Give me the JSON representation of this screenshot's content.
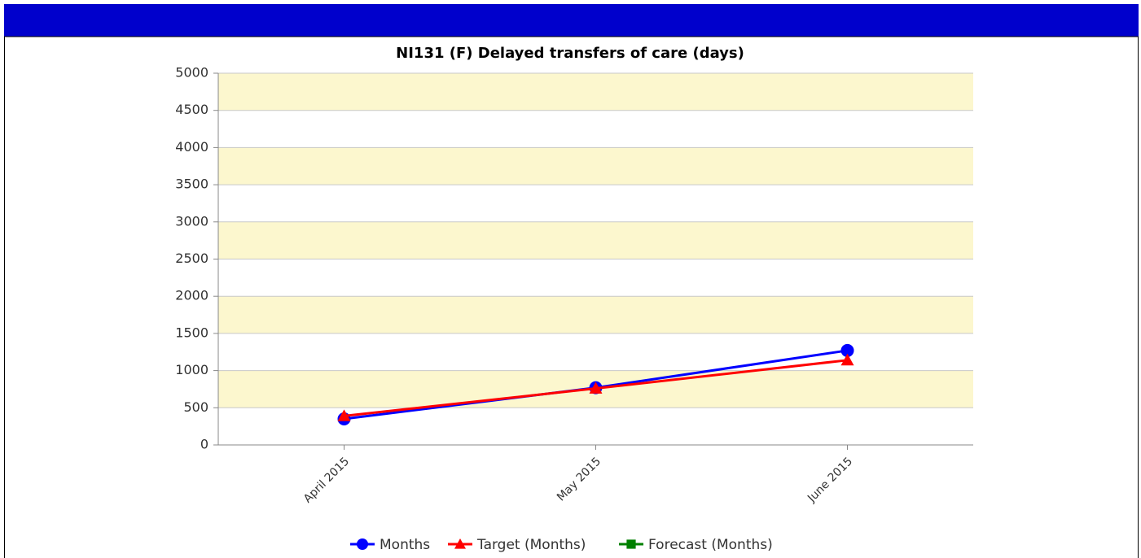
{
  "chart_data": {
    "type": "line",
    "title": "NI131 (F) Delayed transfers of care (days)",
    "categories": [
      "April 2015",
      "May 2015",
      "June 2015"
    ],
    "series": [
      {
        "name": "Months",
        "color": "#0000ff",
        "marker": "circle",
        "values": [
          350,
          770,
          1270
        ]
      },
      {
        "name": "Target (Months)",
        "color": "#ff0000",
        "marker": "triangle",
        "values": [
          390,
          760,
          1140
        ]
      },
      {
        "name": "Forecast (Months)",
        "color": "#008000",
        "marker": "square",
        "values": [
          null,
          null,
          null
        ]
      }
    ],
    "ylim": [
      0,
      5000
    ],
    "yticks": [
      0,
      500,
      1000,
      1500,
      2000,
      2500,
      3000,
      3500,
      4000,
      4500,
      5000
    ],
    "grid": true,
    "band_color": "#fcf7ce",
    "legend": "bottom"
  }
}
